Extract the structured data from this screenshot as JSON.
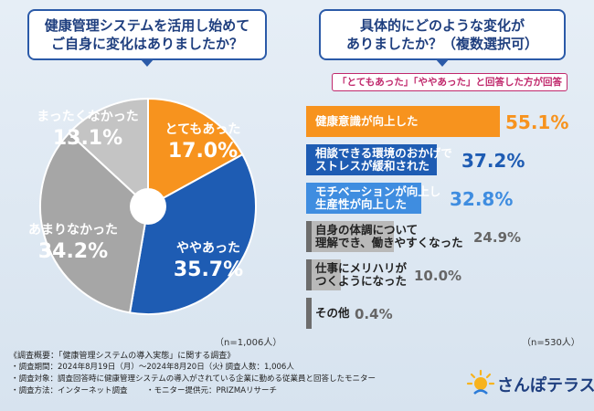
{
  "left": {
    "question": [
      "健康管理システムを活用し始めて",
      "ご自身に変化はありましたか？"
    ],
    "sample": "（n=1,006人）"
  },
  "right": {
    "question": [
      "具体的にどのような変化が",
      "ありましたか？（複数選択可）"
    ],
    "subnote": "「とてもあった」「ややあった」と回答した方が回答",
    "sample": "（n=530人）"
  },
  "chart_data": [
    {
      "type": "pie",
      "title": "健康管理システムを活用し始めてご自身に変化はありましたか？",
      "slices": [
        {
          "label": "とてもあった",
          "value": 17.0,
          "display": "17.0%",
          "color": "#f7931e"
        },
        {
          "label": "ややあった",
          "value": 35.7,
          "display": "35.7%",
          "color": "#1e5cb3"
        },
        {
          "label": "あまりなかった",
          "value": 34.2,
          "display": "34.2%",
          "color": "#a6a6a6"
        },
        {
          "label": "まったくなかった",
          "value": 13.1,
          "display": "13.1%",
          "color": "#c4c4c4"
        }
      ]
    },
    {
      "type": "bar",
      "orientation": "horizontal",
      "title": "具体的にどのような変化がありましたか？（複数選択可）",
      "unit": "%",
      "xlim": [
        0,
        55.1
      ],
      "bars": [
        {
          "label": [
            "健康意識が向上した"
          ],
          "value": 55.1,
          "display": "55.1%",
          "color": "#f7931e",
          "value_color": "#f7931e"
        },
        {
          "label": [
            "相談できる環境のおかげで",
            "ストレスが緩和された"
          ],
          "value": 37.2,
          "display": "37.2%",
          "color": "#1e5cb3",
          "value_color": "#1e5cb3"
        },
        {
          "label": [
            "モチベーションが向上し",
            "生産性が向上した"
          ],
          "value": 32.8,
          "display": "32.8%",
          "color": "#3f8de0",
          "value_color": "#3f8de0"
        },
        {
          "label": [
            "自身の体調について",
            "理解でき、働きやすくなった"
          ],
          "value": 24.9,
          "display": "24.9%",
          "color": "#b9b9b9",
          "value_color": "#666666"
        },
        {
          "label": [
            "仕事にメリハリが",
            "つくようになった"
          ],
          "value": 10.0,
          "display": "10.0%",
          "color": "#b9b9b9",
          "value_color": "#666666"
        },
        {
          "label": [
            "その他"
          ],
          "value": 0.4,
          "display": "0.4%",
          "color": "#b9b9b9",
          "value_color": "#666666"
        }
      ]
    }
  ],
  "footer": {
    "title": "《調査概要：「健康管理システムの導入実態」に関する調査》",
    "period": "・調査期間：2024年8月19日（月）〜2024年8月20日（火）",
    "count": "・調査人数：1,006人",
    "target": "・調査対象：調査回答時に健康管理システムの導入がされている企業に勤める従業員と回答したモニター",
    "method": "・調査方法：インターネット調査",
    "provider": "・モニター提供元：PRIZMAリサーチ"
  },
  "brand": {
    "name": "さんぽテラス"
  }
}
